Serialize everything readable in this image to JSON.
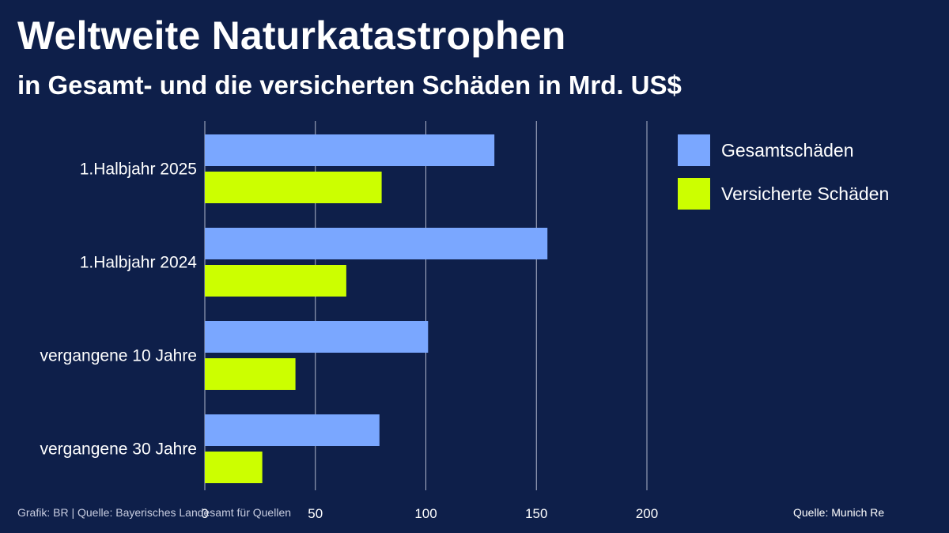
{
  "header": {
    "title": "Weltweite Naturkatastrophen",
    "subtitle": "in Gesamt- und die versicherten Schäden in Mrd. US$"
  },
  "footer": {
    "credit": "Grafik: BR | Quelle: Bayerisches Landesamt für Quellen",
    "source": "Quelle: Munich Re"
  },
  "colors": {
    "background": "#0e1f4a",
    "gesamt": "#7aa7ff",
    "versichert": "#ccff00",
    "grid": "#c9cfe0"
  },
  "chart_data": {
    "type": "bar",
    "orientation": "horizontal",
    "title": "Weltweite Naturkatastrophen",
    "subtitle": "in Gesamt- und die versicherten Schäden in Mrd. US$",
    "categories": [
      "1.Halbjahr 2025",
      "1.Halbjahr 2024",
      "vergangene 10 Jahre",
      "vergangene 30 Jahre"
    ],
    "series": [
      {
        "name": "Gesamtschäden",
        "color": "#7aa7ff",
        "values": [
          131,
          155,
          101,
          79
        ]
      },
      {
        "name": "Versicherte Schäden",
        "color": "#ccff00",
        "values": [
          80,
          64,
          41,
          26
        ]
      }
    ],
    "xlim": [
      0,
      200
    ],
    "xticks": [
      0,
      50,
      100,
      150,
      200
    ],
    "grid": true,
    "legend": "top-right"
  }
}
